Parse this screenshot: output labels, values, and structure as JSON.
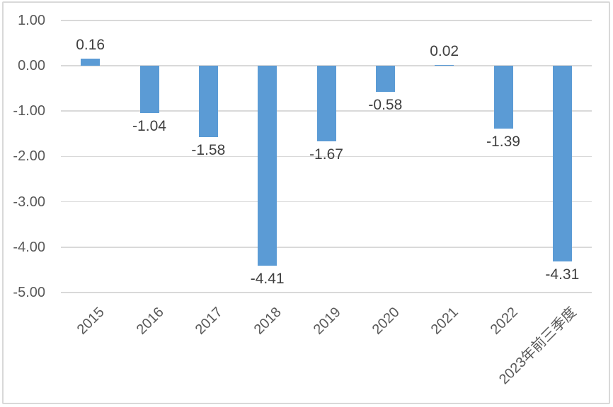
{
  "chart_data": {
    "type": "bar",
    "title": "",
    "xlabel": "",
    "ylabel": "",
    "categories": [
      "2015",
      "2016",
      "2017",
      "2018",
      "2019",
      "2020",
      "2021",
      "2022",
      "2023年前三季度"
    ],
    "values": [
      0.16,
      -1.04,
      -1.58,
      -4.41,
      -1.67,
      -0.58,
      0.02,
      -1.39,
      -4.31
    ],
    "data_labels": [
      "0.16",
      "-1.04",
      "-1.58",
      "-4.41",
      "-1.67",
      "-0.58",
      "0.02",
      "-1.39",
      "-4.31"
    ],
    "ytick_labels": [
      "1.00",
      "0.00",
      "-1.00",
      "-2.00",
      "-3.00",
      "-4.00",
      "-5.00"
    ],
    "ylim": [
      -5.0,
      1.0
    ],
    "ytick_step": 1.0,
    "grid": true,
    "legend_position": "none",
    "data_label_position": "outside-end",
    "x_label_rotation_deg": 45,
    "colors": {
      "bar": "#5B9BD5",
      "gridline": "#D9D9D9",
      "axis_label": "#595959",
      "data_label": "#404040",
      "border": "#D9D9D9",
      "background": "#FFFFFF"
    }
  }
}
